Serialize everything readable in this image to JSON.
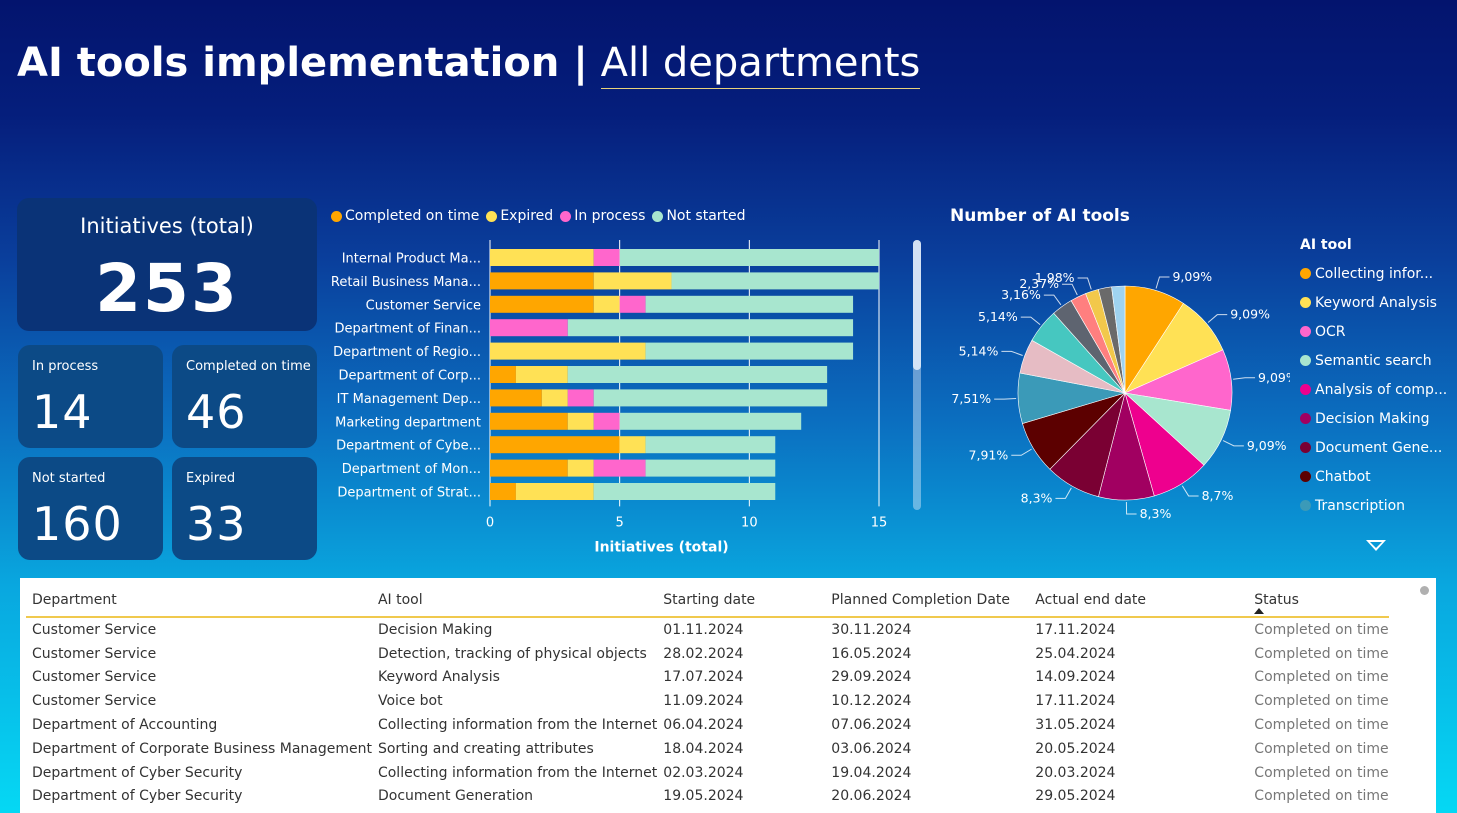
{
  "header": {
    "title_bold": "AI tools implementation |",
    "title_sub": "All departments"
  },
  "kpis": {
    "total": {
      "label": "Initiatives (total)",
      "value": "253"
    },
    "in_process": {
      "label": "In process",
      "value": "14"
    },
    "completed": {
      "label": "Completed on time",
      "value": "46"
    },
    "not_started": {
      "label": "Not started",
      "value": "160"
    },
    "expired": {
      "label": "Expired",
      "value": "33"
    }
  },
  "bar_legend": [
    {
      "label": "Completed on time",
      "color": "#ffa600"
    },
    {
      "label": "Expired",
      "color": "#ffe155"
    },
    {
      "label": "In process",
      "color": "#ff66cc"
    },
    {
      "label": "Not started",
      "color": "#a8e6cf"
    }
  ],
  "pie": {
    "title": "Number of AI tools",
    "legend_title": "AI tool",
    "legend": [
      {
        "label": "Collecting infor...",
        "color": "#ffa600"
      },
      {
        "label": "Keyword Analysis",
        "color": "#ffe155"
      },
      {
        "label": "OCR",
        "color": "#ff66cc"
      },
      {
        "label": "Semantic search",
        "color": "#a8e6cf"
      },
      {
        "label": "Analysis of comp...",
        "color": "#ee008e"
      },
      {
        "label": "Decision Making",
        "color": "#a10061"
      },
      {
        "label": "Document Gene...",
        "color": "#7a0033"
      },
      {
        "label": "Chatbot",
        "color": "#5c0000"
      },
      {
        "label": "Transcription",
        "color": "#3b9ab8"
      }
    ]
  },
  "chart_data": [
    {
      "type": "bar",
      "orientation": "horizontal",
      "stacked": true,
      "xlabel": "Initiatives (total)",
      "xlim": [
        0,
        15
      ],
      "xticks": [
        0,
        5,
        10,
        15
      ],
      "categories": [
        "Internal Product Ma...",
        "Retail Business Mana...",
        "Customer Service",
        "Department of Finan...",
        "Department of Regio...",
        "Department of Corp...",
        "IT Management Dep...",
        "Marketing department",
        "Department of Cybe...",
        "Department of Mon...",
        "Department of Strat..."
      ],
      "series": [
        {
          "name": "Completed on time",
          "color": "#ffa600",
          "values": [
            0,
            4,
            4,
            0,
            0,
            1,
            2,
            3,
            5,
            3,
            1
          ]
        },
        {
          "name": "Expired",
          "color": "#ffe155",
          "values": [
            4,
            3,
            1,
            0,
            6,
            2,
            1,
            1,
            1,
            1,
            3
          ]
        },
        {
          "name": "In process",
          "color": "#ff66cc",
          "values": [
            1,
            0,
            1,
            3,
            0,
            0,
            1,
            1,
            0,
            2,
            0
          ]
        },
        {
          "name": "Not started",
          "color": "#a8e6cf",
          "values": [
            10,
            8,
            8,
            11,
            8,
            10,
            9,
            7,
            5,
            5,
            7
          ]
        }
      ]
    },
    {
      "type": "pie",
      "title": "Number of AI tools",
      "slices": [
        {
          "label": "Collecting infor...",
          "value": 9.09,
          "text": "9,09%",
          "color": "#ffa600"
        },
        {
          "label": "Keyword Analysis",
          "value": 9.09,
          "text": "9,09%",
          "color": "#ffe155"
        },
        {
          "label": "OCR",
          "value": 9.09,
          "text": "9,09%",
          "color": "#ff66cc"
        },
        {
          "label": "Semantic search",
          "value": 9.09,
          "text": "9,09%",
          "color": "#a8e6cf"
        },
        {
          "label": "Analysis of comp...",
          "value": 8.7,
          "text": "8,7%",
          "color": "#ee008e"
        },
        {
          "label": "Decision Making",
          "value": 8.3,
          "text": "8,3%",
          "color": "#a10061"
        },
        {
          "label": "Document Gene...",
          "value": 8.3,
          "text": "8,3%",
          "color": "#7a0033"
        },
        {
          "label": "Chatbot",
          "value": 7.91,
          "text": "7,91%",
          "color": "#5c0000"
        },
        {
          "label": "Transcription",
          "value": 7.51,
          "text": "7,51%",
          "color": "#3b9ab8"
        },
        {
          "label": "",
          "value": 5.14,
          "text": "5,14%",
          "color": "#e6bcc4"
        },
        {
          "label": "",
          "value": 5.14,
          "text": "5,14%",
          "color": "#46c7c0"
        },
        {
          "label": "",
          "value": 3.16,
          "text": "3,16%",
          "color": "#5e6470"
        },
        {
          "label": "",
          "value": 2.37,
          "text": "2,37%",
          "color": "#ff7f7f"
        },
        {
          "label": "",
          "value": 1.98,
          "text": "1,98%",
          "color": "#f2c84b"
        },
        {
          "label": "",
          "value": 1.98,
          "text": "",
          "color": "#6a6a6a"
        },
        {
          "label": "",
          "value": 1.98,
          "text": "",
          "color": "#9fd3f0"
        }
      ]
    }
  ],
  "table": {
    "columns": [
      "Department",
      "AI tool",
      "Starting date",
      "Planned Completion Date",
      "Actual end date",
      "Status"
    ],
    "rows": [
      [
        "Customer Service",
        "Decision Making",
        "01.11.2024",
        "30.11.2024",
        "17.11.2024",
        "Completed on time"
      ],
      [
        "Customer Service",
        "Detection, tracking of physical objects",
        "28.02.2024",
        "16.05.2024",
        "25.04.2024",
        "Completed on time"
      ],
      [
        "Customer Service",
        "Keyword Analysis",
        "17.07.2024",
        "29.09.2024",
        "14.09.2024",
        "Completed on time"
      ],
      [
        "Customer Service",
        "Voice bot",
        "11.09.2024",
        "10.12.2024",
        "17.11.2024",
        "Completed on time"
      ],
      [
        "Department of Accounting",
        "Collecting information from the Internet",
        "06.04.2024",
        "07.06.2024",
        "31.05.2024",
        "Completed on time"
      ],
      [
        "Department of Corporate Business Management",
        "Sorting and creating attributes",
        "18.04.2024",
        "03.06.2024",
        "20.05.2024",
        "Completed on time"
      ],
      [
        "Department of Cyber Security",
        "Collecting information from the Internet",
        "02.03.2024",
        "19.04.2024",
        "20.03.2024",
        "Completed on time"
      ],
      [
        "Department of Cyber Security",
        "Document Generation",
        "19.05.2024",
        "20.06.2024",
        "29.05.2024",
        "Completed on time"
      ]
    ]
  }
}
